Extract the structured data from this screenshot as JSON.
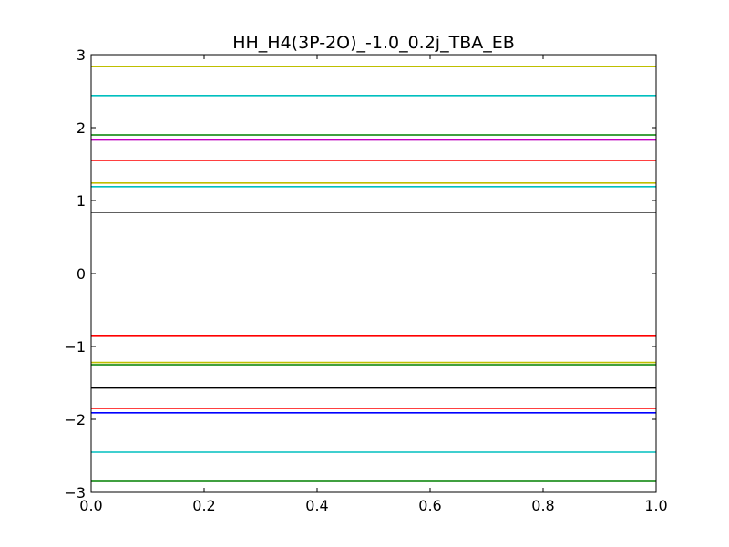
{
  "chart_data": {
    "type": "line",
    "title": "HH_H4(3P-2O)_-1.0_0.2j_TBA_EB",
    "xlabel": "",
    "ylabel": "",
    "xlim": [
      0.0,
      1.0
    ],
    "ylim": [
      -3,
      3
    ],
    "grid": false,
    "x_ticks": [
      {
        "value": 0.0,
        "label": "0.0"
      },
      {
        "value": 0.2,
        "label": "0.2"
      },
      {
        "value": 0.4,
        "label": "0.4"
      },
      {
        "value": 0.6,
        "label": "0.6"
      },
      {
        "value": 0.8,
        "label": "0.8"
      },
      {
        "value": 1.0,
        "label": "1.0"
      }
    ],
    "y_ticks": [
      {
        "value": 3,
        "label": "3"
      },
      {
        "value": 2,
        "label": "2"
      },
      {
        "value": 1,
        "label": "1"
      },
      {
        "value": 0,
        "label": "0"
      },
      {
        "value": -1,
        "label": "−1"
      },
      {
        "value": -2,
        "label": "−2"
      },
      {
        "value": -3,
        "label": "−3"
      }
    ],
    "x": [
      0.0,
      1.0
    ],
    "series": [
      {
        "values": [
          2.84,
          2.84
        ],
        "color": "#bfbf00"
      },
      {
        "values": [
          2.44,
          2.44
        ],
        "color": "#00bfbf"
      },
      {
        "values": [
          1.9,
          1.9
        ],
        "color": "#008000"
      },
      {
        "values": [
          1.83,
          1.83
        ],
        "color": "#bf00bf"
      },
      {
        "values": [
          1.55,
          1.55
        ],
        "color": "#ff0000"
      },
      {
        "values": [
          1.24,
          1.24
        ],
        "color": "#bfbf00"
      },
      {
        "values": [
          1.19,
          1.19
        ],
        "color": "#00bfbf"
      },
      {
        "values": [
          0.84,
          0.84
        ],
        "color": "#000000"
      },
      {
        "values": [
          -0.86,
          -0.86
        ],
        "color": "#ff0000"
      },
      {
        "values": [
          -1.22,
          -1.22
        ],
        "color": "#bfbf00"
      },
      {
        "values": [
          -1.25,
          -1.25
        ],
        "color": "#008000"
      },
      {
        "values": [
          -1.57,
          -1.57
        ],
        "color": "#000000"
      },
      {
        "values": [
          -1.85,
          -1.85
        ],
        "color": "#ff0000"
      },
      {
        "values": [
          -1.91,
          -1.91
        ],
        "color": "#0000ff"
      },
      {
        "values": [
          -2.45,
          -2.45
        ],
        "color": "#00bfbf"
      },
      {
        "values": [
          -2.85,
          -2.85
        ],
        "color": "#008000"
      }
    ]
  }
}
